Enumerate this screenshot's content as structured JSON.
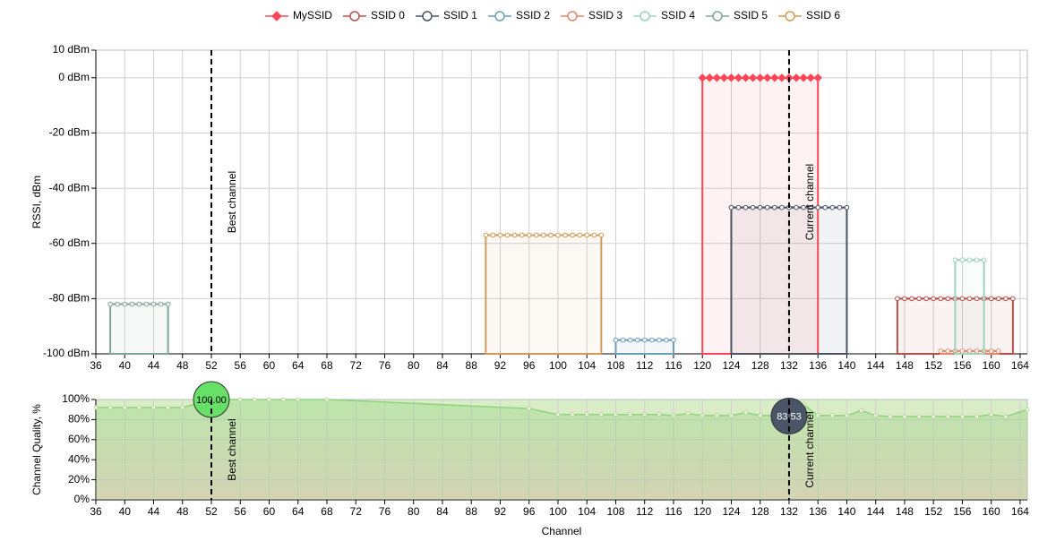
{
  "chart_data": [
    {
      "type": "area",
      "legend": "top",
      "ylabel": "RSSI, dBm",
      "grid": true,
      "xlim": [
        36,
        165
      ],
      "xticks": [
        36,
        40,
        44,
        48,
        52,
        56,
        60,
        64,
        68,
        72,
        76,
        80,
        84,
        88,
        92,
        96,
        100,
        104,
        108,
        112,
        116,
        120,
        124,
        128,
        132,
        136,
        140,
        144,
        148,
        152,
        156,
        160,
        164
      ],
      "ylim": [
        -100,
        10
      ],
      "yticks": [
        {
          "value": -100,
          "label": "-100 dBm"
        },
        {
          "value": -80,
          "label": "-80 dBm"
        },
        {
          "value": -60,
          "label": "-60 dBm"
        },
        {
          "value": -40,
          "label": "-40 dBm"
        },
        {
          "value": -20,
          "label": "-20 dBm"
        },
        {
          "value": 0,
          "label": "0 dBm"
        },
        {
          "value": 10,
          "label": "10 dBm"
        }
      ],
      "annotations": [
        {
          "x": 52,
          "label": "Best channel"
        },
        {
          "x": 132,
          "label": "Current channel"
        }
      ],
      "series": [
        {
          "name": "MySSID",
          "color": "#ff4657",
          "marker": "diamond",
          "x": [
            120,
            121,
            122,
            123,
            124,
            125,
            126,
            127,
            128,
            129,
            130,
            131,
            132,
            133,
            134,
            135,
            136
          ],
          "values": [
            0,
            0,
            0,
            0,
            0,
            0,
            0,
            0,
            0,
            0,
            0,
            0,
            0,
            0,
            0,
            0,
            0
          ]
        },
        {
          "name": "SSID 0",
          "color": "#b8504a",
          "marker": "circle",
          "x": [
            147,
            148,
            149,
            150,
            151,
            152,
            153,
            154,
            155,
            156,
            157,
            158,
            159,
            160,
            161,
            162,
            163
          ],
          "values": [
            -80,
            -80,
            -80,
            -80,
            -80,
            -80,
            -80,
            -80,
            -80,
            -80,
            -80,
            -80,
            -80,
            -80,
            -80,
            -80,
            -80
          ]
        },
        {
          "name": "SSID 1",
          "color": "#4b5363",
          "marker": "circle",
          "x": [
            124,
            125,
            126,
            127,
            128,
            129,
            130,
            131,
            132,
            133,
            134,
            135,
            136,
            137,
            138,
            139,
            140
          ],
          "values": [
            -47,
            -47,
            -47,
            -47,
            -47,
            -47,
            -47,
            -47,
            -47,
            -47,
            -47,
            -47,
            -47,
            -47,
            -47,
            -47,
            -47
          ]
        },
        {
          "name": "SSID 2",
          "color": "#6c9fb4",
          "marker": "circle",
          "x": [
            108,
            109,
            110,
            111,
            112,
            113,
            114,
            115,
            116
          ],
          "values": [
            -95,
            -95,
            -95,
            -95,
            -95,
            -95,
            -95,
            -95,
            -95
          ]
        },
        {
          "name": "SSID 3",
          "color": "#e0896c",
          "marker": "circle",
          "x": [
            153,
            154,
            155,
            156,
            157,
            158,
            159,
            160,
            161
          ],
          "values": [
            -99,
            -99,
            -99,
            -99,
            -99,
            -99,
            -99,
            -99,
            -99
          ]
        },
        {
          "name": "SSID 4",
          "color": "#9fd3bf",
          "marker": "circle",
          "x": [
            155,
            156,
            157,
            158,
            159
          ],
          "values": [
            -66,
            -66,
            -66,
            -66,
            -66
          ]
        },
        {
          "name": "SSID 5",
          "color": "#7fa596",
          "marker": "circle",
          "x": [
            38,
            39,
            40,
            41,
            42,
            43,
            44,
            45,
            46
          ],
          "values": [
            -82,
            -82,
            -82,
            -82,
            -82,
            -82,
            -82,
            -82,
            -82
          ]
        },
        {
          "name": "SSID 6",
          "color": "#d19a5a",
          "marker": "circle",
          "x": [
            90,
            91,
            92,
            93,
            94,
            95,
            96,
            97,
            98,
            99,
            100,
            101,
            102,
            103,
            104,
            105,
            106
          ],
          "values": [
            -57,
            -57,
            -57,
            -57,
            -57,
            -57,
            -57,
            -57,
            -57,
            -57,
            -57,
            -57,
            -57,
            -57,
            -57,
            -57,
            -57
          ]
        }
      ]
    },
    {
      "type": "area",
      "ylabel": "Channel Quality, %",
      "xlabel": "Channel",
      "grid": true,
      "color": "#8fd37c",
      "xlim": [
        36,
        165
      ],
      "xticks": [
        36,
        40,
        44,
        48,
        52,
        56,
        60,
        64,
        68,
        72,
        76,
        80,
        84,
        88,
        92,
        96,
        100,
        104,
        108,
        112,
        116,
        120,
        124,
        128,
        132,
        136,
        140,
        144,
        148,
        152,
        156,
        160,
        164
      ],
      "ylim": [
        0,
        100
      ],
      "yticks": [
        {
          "value": 0,
          "label": "0%"
        },
        {
          "value": 20,
          "label": "20%"
        },
        {
          "value": 40,
          "label": "40%"
        },
        {
          "value": 60,
          "label": "60%"
        },
        {
          "value": 80,
          "label": "80%"
        },
        {
          "value": 100,
          "label": "100%"
        }
      ],
      "annotations": [
        {
          "x": 52,
          "label": "Best channel"
        },
        {
          "x": 132,
          "label": "Current channel"
        }
      ],
      "x": [
        36,
        38,
        40,
        42,
        44,
        46,
        48,
        52,
        54,
        56,
        58,
        60,
        62,
        64,
        68,
        96,
        100,
        102,
        104,
        106,
        108,
        110,
        112,
        114,
        116,
        118,
        120,
        122,
        124,
        126,
        128,
        130,
        132,
        134,
        136,
        138,
        140,
        142,
        144,
        146,
        148,
        150,
        152,
        154,
        156,
        158,
        160,
        162,
        165
      ],
      "values": [
        92,
        92,
        92,
        92,
        92,
        92,
        92,
        100,
        100,
        100,
        100,
        100,
        100,
        100,
        100,
        91,
        85,
        85,
        85,
        85,
        85,
        85,
        85,
        85,
        84,
        86,
        84,
        84,
        84,
        87,
        84,
        84,
        83.53,
        95,
        84,
        84,
        84,
        89,
        84,
        83,
        83,
        83,
        83,
        83,
        83,
        83,
        85,
        83,
        90
      ],
      "value_labels": [
        null,
        null,
        null,
        null,
        null,
        null,
        null,
        "100.00",
        null,
        null,
        null,
        null,
        null,
        null,
        null,
        null,
        null,
        null,
        null,
        null,
        null,
        null,
        null,
        null,
        null,
        null,
        null,
        null,
        null,
        null,
        null,
        null,
        "83.53",
        null,
        null,
        null,
        null,
        null,
        null,
        null,
        null,
        null,
        null,
        null,
        null,
        null,
        null,
        null,
        null
      ]
    }
  ]
}
